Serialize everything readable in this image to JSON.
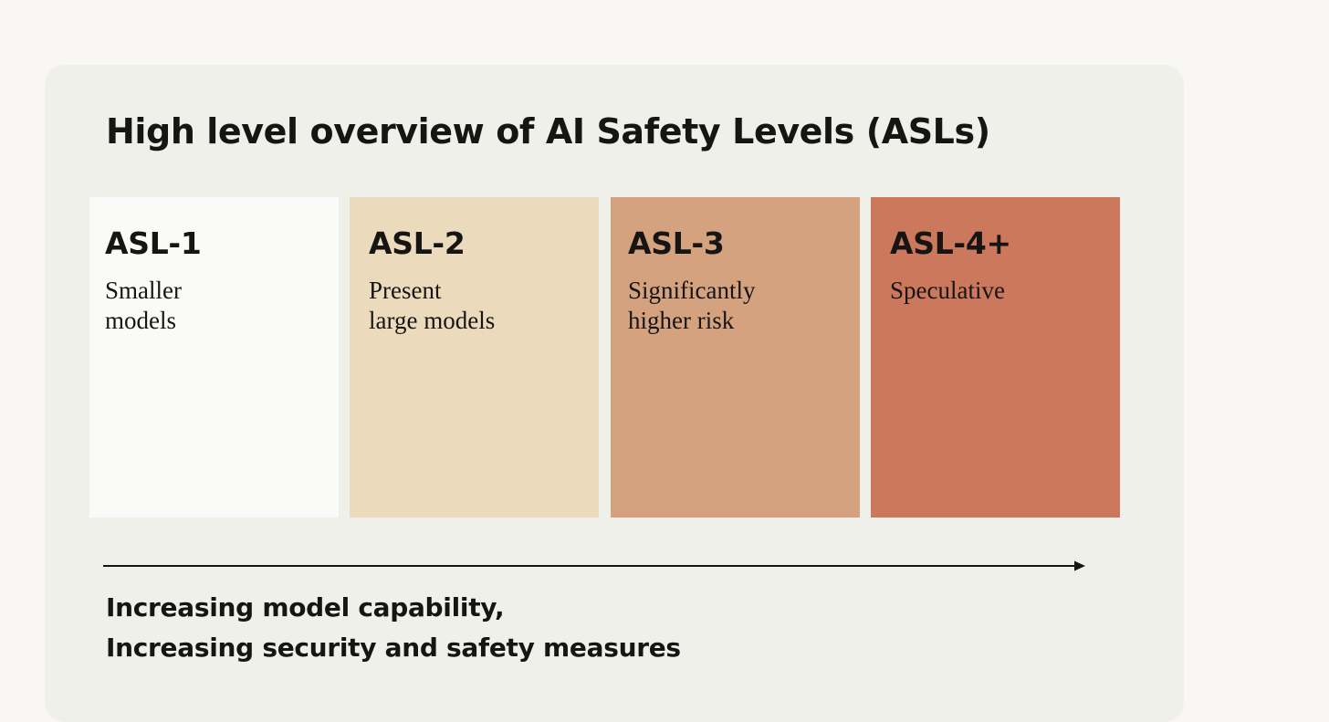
{
  "title": "High level overview of AI Safety Levels (ASLs)",
  "levels": [
    {
      "name": "ASL-1",
      "description": "Smaller\nmodels",
      "color": "#fafaf8"
    },
    {
      "name": "ASL-2",
      "description": "Present\nlarge models",
      "color": "#ebdbbc"
    },
    {
      "name": "ASL-3",
      "description": "Significantly\nhigher risk",
      "color": "#d4a27f"
    },
    {
      "name": "ASL-4+",
      "description": "Speculative",
      "color": "#cc785c"
    }
  ],
  "axis": {
    "line1": "Increasing model capability,",
    "line2": "Increasing security and safety measures"
  },
  "colors": {
    "page_background": "#f8f7f3",
    "card_background": "#f0f0eb",
    "text": "#161513"
  }
}
